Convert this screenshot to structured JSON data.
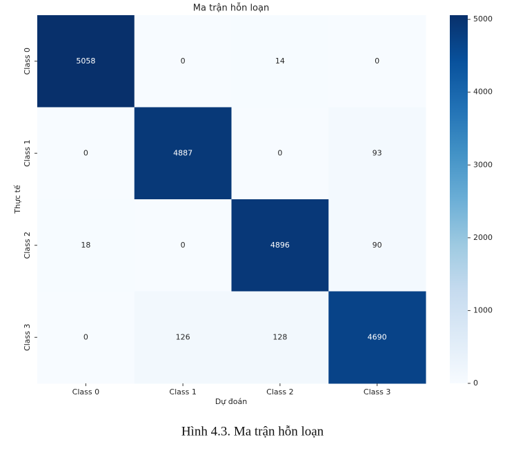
{
  "chart_data": {
    "type": "heatmap",
    "title": "Ma trận hỗn loạn",
    "x_label": "Dự đoán",
    "y_label": "Thực tế",
    "x_categories": [
      "Class 0",
      "Class 1",
      "Class 2",
      "Class 3"
    ],
    "y_categories": [
      "Class 0",
      "Class 1",
      "Class 2",
      "Class 3"
    ],
    "values": [
      [
        5058,
        0,
        14,
        0
      ],
      [
        0,
        4887,
        0,
        93
      ],
      [
        18,
        0,
        4896,
        90
      ],
      [
        0,
        126,
        128,
        4690
      ]
    ],
    "colormap": "Blues",
    "clim": [
      0,
      5058
    ],
    "cticks": [
      0,
      1000,
      2000,
      3000,
      4000,
      5000
    ]
  },
  "caption": "Hình 4.3. Ma trận hỗn loạn"
}
